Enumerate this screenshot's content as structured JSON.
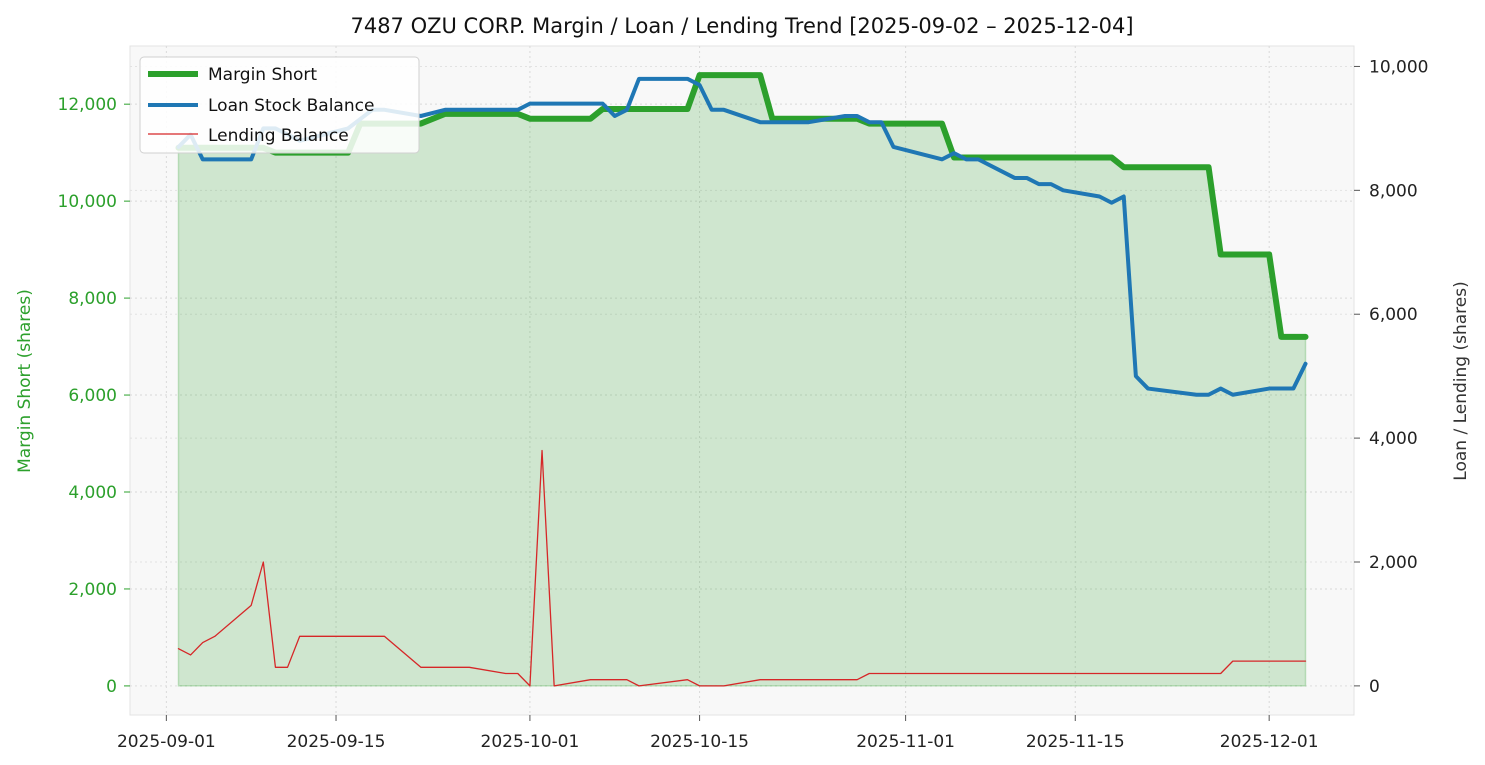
{
  "chart_data": {
    "type": "line",
    "title": "7487 OZU CORP. Margin / Loan / Lending Trend [2025-09-02 – 2025-12-04]",
    "xlabel": "",
    "ylabel_left": "Margin Short (shares)",
    "ylabel_right": "Loan / Lending (shares)",
    "x_ticks": [
      "2025-09-01",
      "2025-09-15",
      "2025-10-01",
      "2025-10-15",
      "2025-11-01",
      "2025-11-15",
      "2025-12-01"
    ],
    "y_left_ticks": [
      "0",
      "2,000",
      "4,000",
      "6,000",
      "8,000",
      "10,000",
      "12,000"
    ],
    "y_right_ticks": [
      "0",
      "2,000",
      "4,000",
      "6,000",
      "8,000",
      "10,000"
    ],
    "xlim": [
      "2025-08-29",
      "2025-12-08"
    ],
    "ylim_left": [
      -600,
      13200
    ],
    "ylim_right": [
      -470,
      10330
    ],
    "grid": true,
    "legend_position": "top-left",
    "colors": {
      "margin": "#2ca02c",
      "margin_fill": "#2ca02c",
      "loan": "#1f77b4",
      "lending": "#d62728",
      "plot_bg": "#f8f8f8",
      "left_axis": "#2ca02c"
    },
    "series": [
      {
        "name": "Margin Short",
        "axis": "left",
        "style": "thick-fill",
        "points": [
          [
            "2025-09-02",
            11100
          ],
          [
            "2025-09-09",
            11100
          ],
          [
            "2025-09-10",
            11000
          ],
          [
            "2025-09-16",
            11000
          ],
          [
            "2025-09-17",
            11600
          ],
          [
            "2025-09-22",
            11600
          ],
          [
            "2025-09-24",
            11800
          ],
          [
            "2025-09-30",
            11800
          ],
          [
            "2025-10-01",
            11700
          ],
          [
            "2025-10-06",
            11700
          ],
          [
            "2025-10-07",
            11900
          ],
          [
            "2025-10-14",
            11900
          ],
          [
            "2025-10-15",
            12600
          ],
          [
            "2025-10-20",
            12600
          ],
          [
            "2025-10-21",
            11700
          ],
          [
            "2025-10-28",
            11700
          ],
          [
            "2025-10-29",
            11600
          ],
          [
            "2025-11-04",
            11600
          ],
          [
            "2025-11-05",
            10900
          ],
          [
            "2025-11-18",
            10900
          ],
          [
            "2025-11-19",
            10700
          ],
          [
            "2025-11-26",
            10700
          ],
          [
            "2025-11-27",
            8900
          ],
          [
            "2025-12-01",
            8900
          ],
          [
            "2025-12-02",
            7200
          ],
          [
            "2025-12-04",
            7200
          ]
        ]
      },
      {
        "name": "Loan Stock Balance",
        "axis": "right",
        "style": "thick",
        "points": [
          [
            "2025-09-02",
            8700
          ],
          [
            "2025-09-03",
            8900
          ],
          [
            "2025-09-04",
            8500
          ],
          [
            "2025-09-08",
            8500
          ],
          [
            "2025-09-09",
            9000
          ],
          [
            "2025-09-10",
            9000
          ],
          [
            "2025-09-12",
            8800
          ],
          [
            "2025-09-16",
            9000
          ],
          [
            "2025-09-18",
            9300
          ],
          [
            "2025-09-19",
            9300
          ],
          [
            "2025-09-22",
            9200
          ],
          [
            "2025-09-24",
            9300
          ],
          [
            "2025-09-30",
            9300
          ],
          [
            "2025-10-01",
            9400
          ],
          [
            "2025-10-06",
            9400
          ],
          [
            "2025-10-07",
            9400
          ],
          [
            "2025-10-08",
            9200
          ],
          [
            "2025-10-09",
            9300
          ],
          [
            "2025-10-10",
            9800
          ],
          [
            "2025-10-14",
            9800
          ],
          [
            "2025-10-15",
            9700
          ],
          [
            "2025-10-16",
            9300
          ],
          [
            "2025-10-17",
            9300
          ],
          [
            "2025-10-20",
            9100
          ],
          [
            "2025-10-21",
            9100
          ],
          [
            "2025-10-24",
            9100
          ],
          [
            "2025-10-27",
            9200
          ],
          [
            "2025-10-28",
            9200
          ],
          [
            "2025-10-29",
            9100
          ],
          [
            "2025-10-30",
            9100
          ],
          [
            "2025-10-31",
            8700
          ],
          [
            "2025-11-04",
            8500
          ],
          [
            "2025-11-05",
            8600
          ],
          [
            "2025-11-06",
            8500
          ],
          [
            "2025-11-07",
            8500
          ],
          [
            "2025-11-10",
            8200
          ],
          [
            "2025-11-11",
            8200
          ],
          [
            "2025-11-12",
            8100
          ],
          [
            "2025-11-13",
            8100
          ],
          [
            "2025-11-14",
            8000
          ],
          [
            "2025-11-17",
            7900
          ],
          [
            "2025-11-18",
            7800
          ],
          [
            "2025-11-19",
            7900
          ],
          [
            "2025-11-20",
            5000
          ],
          [
            "2025-11-21",
            4800
          ],
          [
            "2025-11-25",
            4700
          ],
          [
            "2025-11-26",
            4700
          ],
          [
            "2025-11-27",
            4800
          ],
          [
            "2025-11-28",
            4700
          ],
          [
            "2025-12-01",
            4800
          ],
          [
            "2025-12-03",
            4800
          ],
          [
            "2025-12-04",
            5200
          ]
        ]
      },
      {
        "name": "Lending Balance",
        "axis": "right",
        "style": "thin",
        "points": [
          [
            "2025-09-02",
            600
          ],
          [
            "2025-09-03",
            500
          ],
          [
            "2025-09-04",
            700
          ],
          [
            "2025-09-05",
            800
          ],
          [
            "2025-09-08",
            1300
          ],
          [
            "2025-09-09",
            2000
          ],
          [
            "2025-09-10",
            300
          ],
          [
            "2025-09-11",
            300
          ],
          [
            "2025-09-12",
            800
          ],
          [
            "2025-09-19",
            800
          ],
          [
            "2025-09-22",
            300
          ],
          [
            "2025-09-26",
            300
          ],
          [
            "2025-09-29",
            200
          ],
          [
            "2025-09-30",
            200
          ],
          [
            "2025-10-01",
            0
          ],
          [
            "2025-10-02",
            3800
          ],
          [
            "2025-10-03",
            0
          ],
          [
            "2025-10-06",
            100
          ],
          [
            "2025-10-09",
            100
          ],
          [
            "2025-10-10",
            0
          ],
          [
            "2025-10-14",
            100
          ],
          [
            "2025-10-15",
            0
          ],
          [
            "2025-10-17",
            0
          ],
          [
            "2025-10-20",
            100
          ],
          [
            "2025-10-28",
            100
          ],
          [
            "2025-10-29",
            200
          ],
          [
            "2025-11-27",
            200
          ],
          [
            "2025-11-28",
            400
          ],
          [
            "2025-12-04",
            400
          ]
        ]
      }
    ]
  }
}
